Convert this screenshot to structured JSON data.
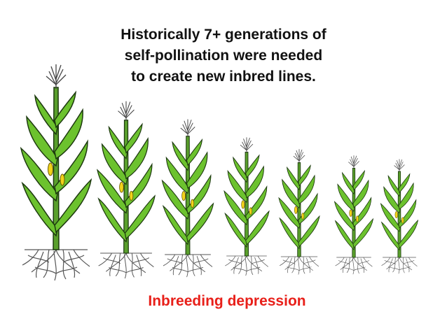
{
  "title": {
    "lines": [
      "Historically 7+ generations of",
      "self-pollination were needed",
      "to create new inbred lines."
    ]
  },
  "caption": "Inbreeding depression"
}
